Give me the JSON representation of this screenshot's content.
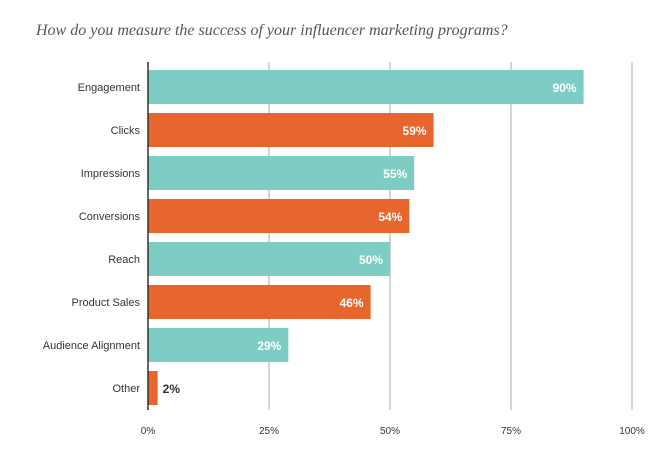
{
  "chart_data": {
    "type": "bar",
    "orientation": "horizontal",
    "title": "How do you measure the success of your influencer marketing programs?",
    "categories": [
      "Engagement",
      "Clicks",
      "Impressions",
      "Conversions",
      "Reach",
      "Product Sales",
      "Audience Alignment",
      "Other"
    ],
    "values": [
      90,
      59,
      55,
      54,
      50,
      46,
      29,
      2
    ],
    "value_labels": [
      "90%",
      "59%",
      "55%",
      "54%",
      "50%",
      "46%",
      "29%",
      "2%"
    ],
    "xlim": [
      0,
      100
    ],
    "x_ticks": [
      0,
      25,
      50,
      75,
      100
    ],
    "x_tick_labels": [
      "0%",
      "25%",
      "50%",
      "75%",
      "100%"
    ],
    "grid": true,
    "colors": [
      "#7ecdc4",
      "#e8652d"
    ],
    "label_colors": {
      "inside": "#ffffff",
      "outside": "#333333"
    },
    "grid_color": "#aaaaaa",
    "axis_color": "#333333"
  }
}
